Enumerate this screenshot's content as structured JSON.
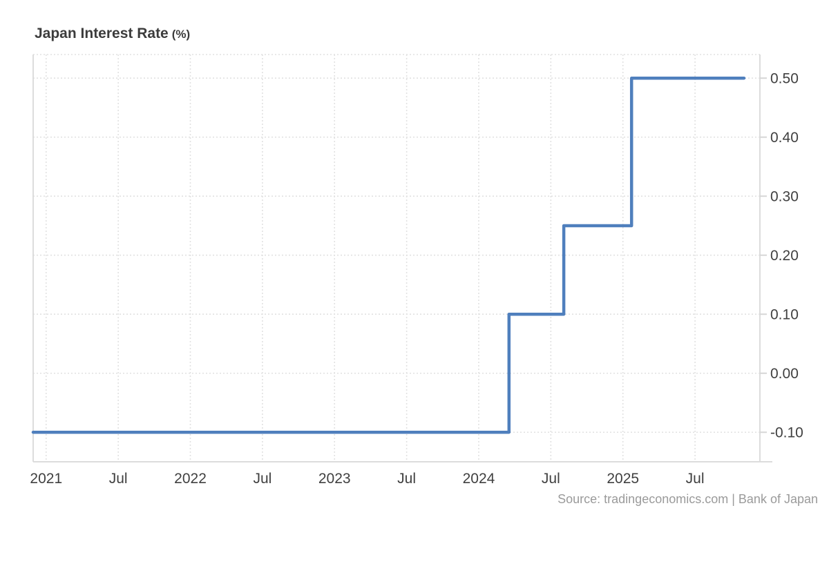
{
  "header": {
    "title": "Japan Interest Rate",
    "unit": "(%)"
  },
  "footer": {
    "source": "Source: tradingeconomics.com | Bank of Japan"
  },
  "chart_data": {
    "type": "line",
    "step": true,
    "title": "Japan Interest Rate (%)",
    "xlabel": "",
    "ylabel": "",
    "legend": "none",
    "grid": true,
    "y_axis_position": "right",
    "series": [
      {
        "name": "Japan Interest Rate",
        "points": [
          {
            "x": 2020.91,
            "y": -0.1
          },
          {
            "x": 2024.21,
            "y": -0.1
          },
          {
            "x": 2024.21,
            "y": 0.1
          },
          {
            "x": 2024.59,
            "y": 0.1
          },
          {
            "x": 2024.59,
            "y": 0.25
          },
          {
            "x": 2025.06,
            "y": 0.25
          },
          {
            "x": 2025.06,
            "y": 0.5
          },
          {
            "x": 2025.84,
            "y": 0.5
          }
        ]
      }
    ],
    "x_ticks": [
      2021,
      2021.5,
      2022,
      2022.5,
      2023,
      2023.5,
      2024,
      2024.5,
      2025,
      2025.5
    ],
    "x_tick_labels": [
      "2021",
      "Jul",
      "2022",
      "Jul",
      "2023",
      "Jul",
      "2024",
      "Jul",
      "2025",
      "Jul"
    ],
    "y_ticks": [
      0.5,
      0.4,
      0.3,
      0.2,
      0.1,
      0.0,
      -0.1
    ],
    "y_tick_labels": [
      "0.50",
      "0.40",
      "0.30",
      "0.20",
      "0.10",
      "0.00",
      "-0.10"
    ],
    "xlim": [
      2020.91,
      2025.95
    ],
    "ylim": [
      -0.15,
      0.54
    ],
    "colors": {
      "line": "#4f7fbd",
      "grid": "#e1e1e1",
      "border": "#dcdcdc",
      "tick_mark": "#d6d6d6",
      "tick_text": "#404040",
      "title_text": "#3c3c3c",
      "source_text": "#9a9a9a"
    }
  }
}
